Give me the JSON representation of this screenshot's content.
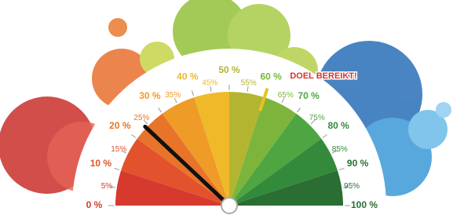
{
  "chart_data": {
    "type": "gauge",
    "value": 24,
    "goal": 60,
    "goal_label": "DOEL BEREIKT!",
    "xlim": [
      0,
      100
    ],
    "ticks": [
      {
        "value": 0,
        "label": "0 %"
      },
      {
        "value": 5,
        "label": "5%"
      },
      {
        "value": 10,
        "label": "10 %"
      },
      {
        "value": 15,
        "label": "15%"
      },
      {
        "value": 20,
        "label": "20 %"
      },
      {
        "value": 25,
        "label": "25%"
      },
      {
        "value": 30,
        "label": "30 %"
      },
      {
        "value": 35,
        "label": "35%"
      },
      {
        "value": 40,
        "label": "40 %"
      },
      {
        "value": 45,
        "label": "45%"
      },
      {
        "value": 50,
        "label": "50 %"
      },
      {
        "value": 55,
        "label": "55%"
      },
      {
        "value": 60,
        "label": "60 %"
      },
      {
        "value": 65,
        "label": "65%"
      },
      {
        "value": 70,
        "label": "70 %"
      },
      {
        "value": 75,
        "label": "75%"
      },
      {
        "value": 80,
        "label": "80 %"
      },
      {
        "value": 85,
        "label": "85%"
      },
      {
        "value": 90,
        "label": "90 %"
      },
      {
        "value": 95,
        "label": "95%"
      },
      {
        "value": 100,
        "label": "100 %"
      }
    ],
    "band_colors": [
      "#d63a2f",
      "#e2522c",
      "#e8742a",
      "#ee9b28",
      "#f0b92a",
      "#b3b531",
      "#7db53c",
      "#4fa541",
      "#348a3b",
      "#2a6e33"
    ],
    "needle_color": "#111111",
    "goal_color": "#e8c21e",
    "goal_label_color": "#d9342b"
  }
}
